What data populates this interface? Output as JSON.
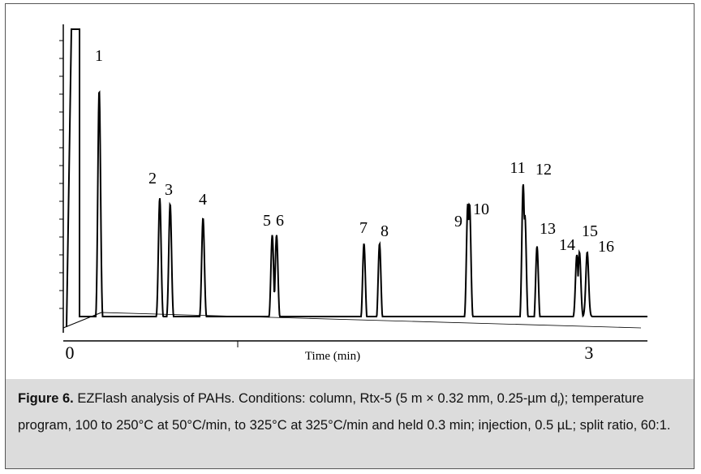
{
  "figure": {
    "caption_lead": "Figure 6.",
    "caption_text_1": " EZFlash analysis of PAHs. Conditions: column, Rtx-5 (5 m × 0.32 mm, 0.25-µm d",
    "caption_sub": "f",
    "caption_text_2": "); temperature program, 100 to 250°C at 50°C/min, to 325°C at 325°C/min and held 0.3 min; injection, 0.5 µL; split ratio, 60:1."
  },
  "chart_data": {
    "type": "line",
    "subtype": "chromatogram",
    "xlabel": "Time (min)",
    "x_tick_labels": [
      "0",
      "3"
    ],
    "xlim": [
      0,
      3.3
    ],
    "ylim": [
      0,
      1
    ],
    "peaks": [
      {
        "label": "1",
        "t": 0.17,
        "h": 0.84
      },
      {
        "label": "2",
        "t": 0.52,
        "h": 0.46
      },
      {
        "label": "3",
        "t": 0.58,
        "h": 0.44
      },
      {
        "label": "4",
        "t": 0.77,
        "h": 0.39
      },
      {
        "label": "5",
        "t": 1.17,
        "h": 0.33
      },
      {
        "label": "6",
        "t": 1.195,
        "h": 0.33
      },
      {
        "label": "7",
        "t": 1.7,
        "h": 0.3
      },
      {
        "label": "8",
        "t": 1.79,
        "h": 0.3
      },
      {
        "label": "9",
        "t": 2.3,
        "h": 0.44
      },
      {
        "label": "10",
        "t": 2.31,
        "h": 0.44
      },
      {
        "label": "11",
        "t": 2.62,
        "h": 0.51
      },
      {
        "label": "12",
        "t": 2.63,
        "h": 0.4
      },
      {
        "label": "13",
        "t": 2.7,
        "h": 0.29
      },
      {
        "label": "14",
        "t": 2.93,
        "h": 0.26
      },
      {
        "label": "15",
        "t": 2.945,
        "h": 0.27
      },
      {
        "label": "16",
        "t": 2.99,
        "h": 0.27
      }
    ]
  }
}
